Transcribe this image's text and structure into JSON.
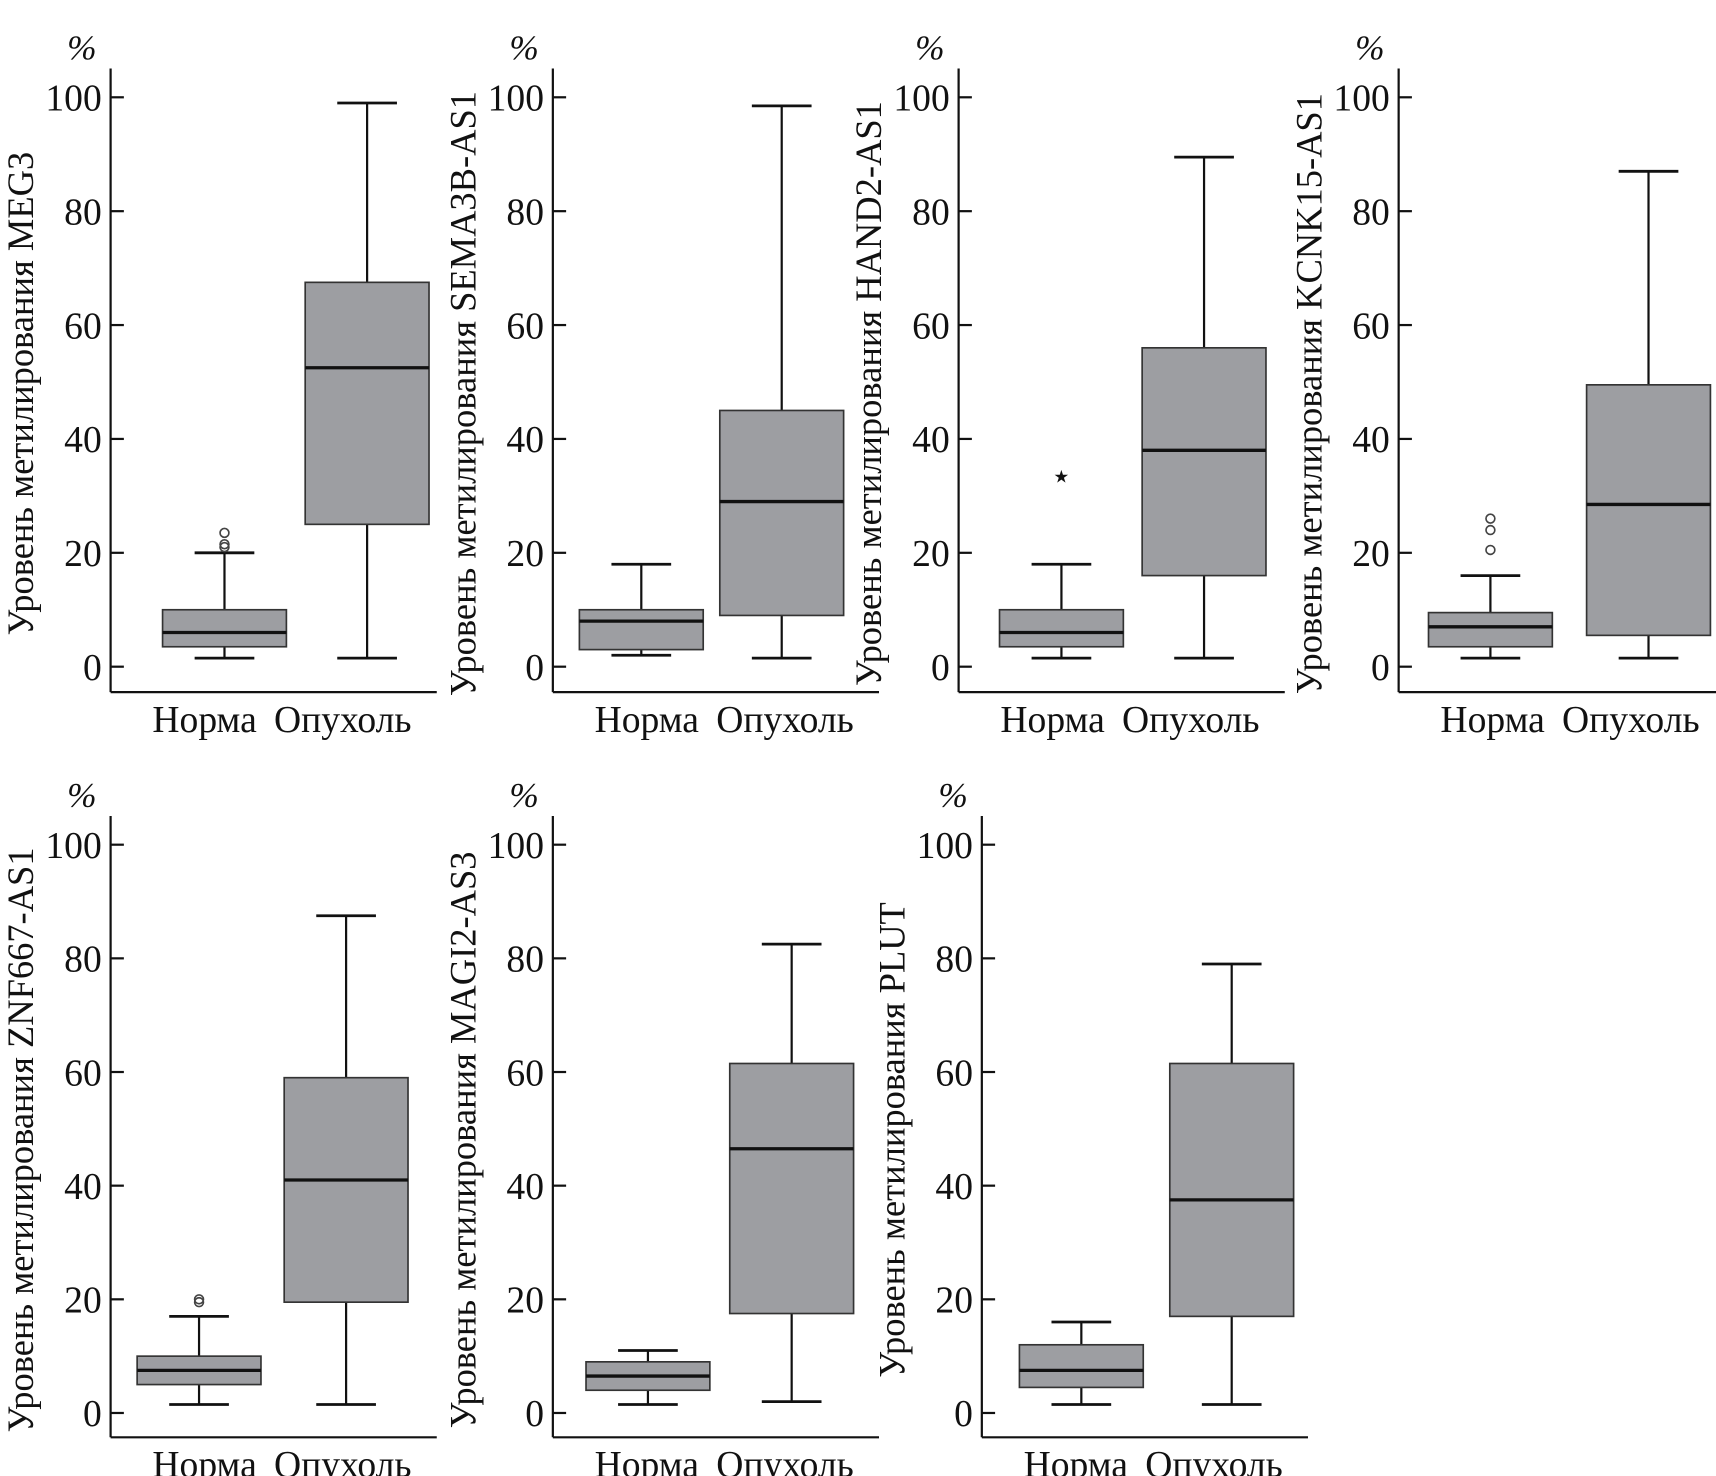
{
  "chart_data": [
    {
      "type": "box",
      "title": "",
      "ylabel": "Уровень метилирования MEG3",
      "unit": "%",
      "ylim": [
        0,
        100
      ],
      "yticks": [
        0,
        20,
        40,
        60,
        80,
        100
      ],
      "categories": [
        "Норма",
        "Опухоль"
      ],
      "boxes": [
        {
          "min": 1.5,
          "q1": 3.5,
          "median": 6,
          "q3": 10,
          "max": 20,
          "outliers": [
            21,
            21.5,
            23.5
          ],
          "outlier_marker": "circle"
        },
        {
          "min": 1.5,
          "q1": 25,
          "median": 52.5,
          "q3": 67.5,
          "max": 99,
          "outliers": []
        }
      ]
    },
    {
      "type": "box",
      "title": "",
      "ylabel": "Уровень метилирования SEMA3B-AS1",
      "unit": "%",
      "ylim": [
        0,
        100
      ],
      "yticks": [
        0,
        20,
        40,
        60,
        80,
        100
      ],
      "categories": [
        "Норма",
        "Опухоль"
      ],
      "boxes": [
        {
          "min": 2,
          "q1": 3,
          "median": 8,
          "q3": 10,
          "max": 18,
          "outliers": []
        },
        {
          "min": 1.5,
          "q1": 9,
          "median": 29,
          "q3": 45,
          "max": 98.5,
          "outliers": []
        }
      ]
    },
    {
      "type": "box",
      "title": "",
      "ylabel": "Уровень метилирования HAND2-AS1",
      "unit": "%",
      "ylim": [
        0,
        100
      ],
      "yticks": [
        0,
        20,
        40,
        60,
        80,
        100
      ],
      "categories": [
        "Норма",
        "Опухоль"
      ],
      "boxes": [
        {
          "min": 1.5,
          "q1": 3.5,
          "median": 6,
          "q3": 10,
          "max": 18,
          "outliers": [
            33.5
          ],
          "outlier_marker": "star"
        },
        {
          "min": 1.5,
          "q1": 16,
          "median": 38,
          "q3": 56,
          "max": 89.5,
          "outliers": []
        }
      ]
    },
    {
      "type": "box",
      "title": "",
      "ylabel": "Уровень метилирования KCNK15-AS1",
      "unit": "%",
      "ylim": [
        0,
        100
      ],
      "yticks": [
        0,
        20,
        40,
        60,
        80,
        100
      ],
      "categories": [
        "Норма",
        "Опухоль"
      ],
      "boxes": [
        {
          "min": 1.5,
          "q1": 3.5,
          "median": 7,
          "q3": 9.5,
          "max": 16,
          "outliers": [
            20.5,
            24,
            26
          ],
          "outlier_marker": "circle"
        },
        {
          "min": 1.5,
          "q1": 5.5,
          "median": 28.5,
          "q3": 49.5,
          "max": 87,
          "outliers": []
        }
      ]
    },
    {
      "type": "box",
      "title": "",
      "ylabel": "Уровень метилирования ZNF667-AS1",
      "unit": "%",
      "ylim": [
        0,
        100
      ],
      "yticks": [
        0,
        20,
        40,
        60,
        80,
        100
      ],
      "categories": [
        "Норма",
        "Опухоль"
      ],
      "boxes": [
        {
          "min": 1.5,
          "q1": 5,
          "median": 7.5,
          "q3": 10,
          "max": 17,
          "outliers": [
            19.5,
            20
          ],
          "outlier_marker": "circle"
        },
        {
          "min": 1.5,
          "q1": 19.5,
          "median": 41,
          "q3": 59,
          "max": 87.5,
          "outliers": []
        }
      ]
    },
    {
      "type": "box",
      "title": "",
      "ylabel": "Уровень метилирования MAGI2-AS3",
      "unit": "%",
      "ylim": [
        0,
        100
      ],
      "yticks": [
        0,
        20,
        40,
        60,
        80,
        100
      ],
      "categories": [
        "Норма",
        "Опухоль"
      ],
      "boxes": [
        {
          "min": 1.5,
          "q1": 4,
          "median": 6.5,
          "q3": 9,
          "max": 11,
          "outliers": []
        },
        {
          "min": 2,
          "q1": 17.5,
          "median": 46.5,
          "q3": 61.5,
          "max": 82.5,
          "outliers": []
        }
      ]
    },
    {
      "type": "box",
      "title": "",
      "ylabel": "Уровень метилирования PLUT",
      "unit": "%",
      "ylim": [
        0,
        100
      ],
      "yticks": [
        0,
        20,
        40,
        60,
        80,
        100
      ],
      "categories": [
        "Норма",
        "Опухоль"
      ],
      "boxes": [
        {
          "min": 1.5,
          "q1": 4.5,
          "median": 7.5,
          "q3": 12,
          "max": 16,
          "outliers": []
        },
        {
          "min": 1.5,
          "q1": 17,
          "median": 37.5,
          "q3": 61.5,
          "max": 79,
          "outliers": []
        }
      ]
    }
  ],
  "colors": {
    "box_fill": "#9d9ea2",
    "stroke": "#111111"
  }
}
